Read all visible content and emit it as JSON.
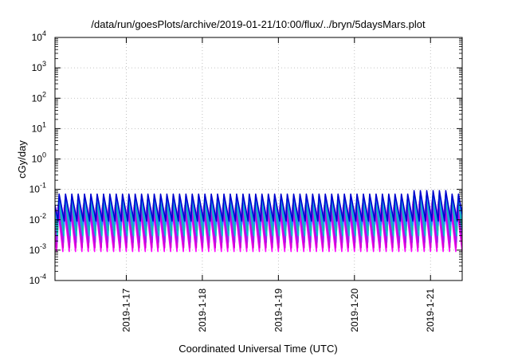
{
  "chart_data": {
    "type": "line",
    "title": "/data/run/goesPlots/archive/2019-01-21/10:00/flux/../bryn/5daysMars.plot",
    "xlabel": "Coordinated Universal Time (UTC)",
    "ylabel": "cGy/day",
    "yscale": "log",
    "ylim": [
      0.0001,
      10000
    ],
    "y_ticks": [
      {
        "base": "10",
        "exp": "-4",
        "value": 0.0001
      },
      {
        "base": "10",
        "exp": "-3",
        "value": 0.001
      },
      {
        "base": "10",
        "exp": "-2",
        "value": 0.01
      },
      {
        "base": "10",
        "exp": "-1",
        "value": 0.1
      },
      {
        "base": "10",
        "exp": "0",
        "value": 1
      },
      {
        "base": "10",
        "exp": "1",
        "value": 10
      },
      {
        "base": "10",
        "exp": "2",
        "value": 100
      },
      {
        "base": "10",
        "exp": "3",
        "value": 1000
      },
      {
        "base": "10",
        "exp": "4",
        "value": 10000
      }
    ],
    "xlim": [
      "2019-01-16T01:30",
      "2019-01-21T10:00"
    ],
    "x_ticks": [
      {
        "label": "2019-1-17",
        "value": "2019-01-17T00:00"
      },
      {
        "label": "2019-1-18",
        "value": "2019-01-18T00:00"
      },
      {
        "label": "2019-1-19",
        "value": "2019-01-19T00:00"
      },
      {
        "label": "2019-1-20",
        "value": "2019-01-20T00:00"
      },
      {
        "label": "2019-1-21",
        "value": "2019-01-21T00:00"
      }
    ],
    "grid": true,
    "legend": "none",
    "sawtooth_period_hours": 2.0,
    "series": [
      {
        "color": "#ff00ff",
        "peak": 0.025,
        "trough": 0.0009,
        "phase_hours": 0.0
      },
      {
        "color": "#d000d0",
        "peak": 0.03,
        "trough": 0.0012,
        "phase_hours": 0.1
      },
      {
        "color": "#a020f0",
        "peak": 0.035,
        "trough": 0.0018,
        "phase_hours": 0.2
      },
      {
        "color": "#00c8c8",
        "peak": 0.045,
        "trough": 0.003,
        "phase_hours": 0.3
      },
      {
        "color": "#20b2aa",
        "peak": 0.05,
        "trough": 0.0045,
        "phase_hours": 0.35
      },
      {
        "color": "#1e90ff",
        "peak": 0.06,
        "trough": 0.0065,
        "phase_hours": 0.4
      },
      {
        "color": "#0000cd",
        "peak": 0.07,
        "trough": 0.009,
        "phase_hours": 0.45
      }
    ],
    "spike": {
      "time": "2019-01-20T23:00",
      "multiplier": 1.3
    }
  }
}
